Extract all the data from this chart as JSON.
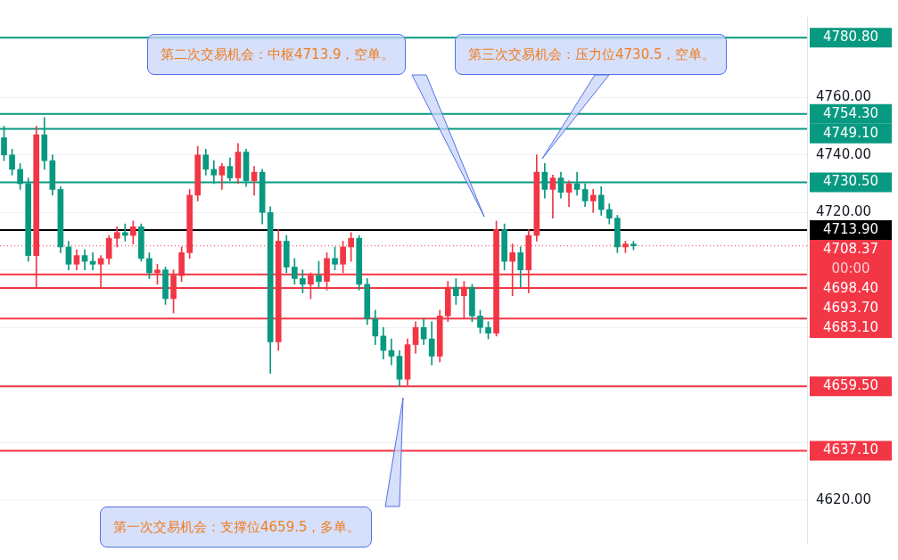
{
  "chart_data": {
    "type": "candlestick",
    "categories": [
      null,
      null,
      null,
      null,
      null,
      null,
      null,
      null,
      null,
      null,
      null,
      null,
      null,
      null,
      null,
      null,
      null,
      null,
      null,
      null,
      null,
      null,
      null,
      null,
      null,
      null,
      null,
      null,
      null,
      null,
      null,
      null,
      null,
      null,
      null,
      null,
      null,
      null,
      null,
      null,
      null,
      null,
      null,
      null,
      null,
      null,
      null,
      null,
      null,
      null,
      null,
      null,
      null,
      null,
      null,
      null,
      null,
      null,
      null,
      null,
      null,
      null,
      null,
      null,
      null,
      null,
      null,
      null,
      null,
      null,
      null,
      null,
      null,
      null,
      null,
      null,
      null,
      null,
      null,
      null,
      null,
      null,
      null,
      null,
      null,
      null,
      null,
      null,
      null,
      null,
      null,
      null,
      null,
      null,
      null,
      null,
      null,
      null,
      null,
      null
    ],
    "ohlc": [
      [
        4746,
        4750,
        4738,
        4740
      ],
      [
        4740,
        4742,
        4733,
        4735
      ],
      [
        4735,
        4737,
        4728,
        4730
      ],
      [
        4730,
        4732,
        4703,
        4705
      ],
      [
        4705,
        4750,
        4694,
        4747
      ],
      [
        4747,
        4753,
        4735,
        4738
      ],
      [
        4738,
        4740,
        4726,
        4728
      ],
      [
        4728,
        4729,
        4706,
        4708
      ],
      [
        4708,
        4710,
        4700,
        4702
      ],
      [
        4702,
        4707,
        4700,
        4705
      ],
      [
        4705,
        4707,
        4700,
        4703
      ],
      [
        4703,
        4706,
        4700,
        4702
      ],
      [
        4702,
        4705,
        4694,
        4704
      ],
      [
        4704,
        4712,
        4702,
        4711
      ],
      [
        4711,
        4715,
        4708,
        4713
      ],
      [
        4713,
        4716,
        4710,
        4712
      ],
      [
        4712,
        4717,
        4709,
        4715
      ],
      [
        4715,
        4716,
        4703,
        4704
      ],
      [
        4704,
        4706,
        4697,
        4699
      ],
      [
        4699,
        4702,
        4695,
        4700
      ],
      [
        4700,
        4701,
        4688,
        4690
      ],
      [
        4690,
        4700,
        4685,
        4698
      ],
      [
        4698,
        4708,
        4696,
        4706
      ],
      [
        4706,
        4728,
        4704,
        4726
      ],
      [
        4726,
        4743,
        4724,
        4740
      ],
      [
        4740,
        4742,
        4733,
        4735
      ],
      [
        4735,
        4738,
        4730,
        4733
      ],
      [
        4733,
        4737,
        4728,
        4736
      ],
      [
        4736,
        4739,
        4731,
        4732
      ],
      [
        4732,
        4744,
        4730,
        4741
      ],
      [
        4741,
        4742,
        4729,
        4731
      ],
      [
        4731,
        4736,
        4726,
        4734
      ],
      [
        4734,
        4735,
        4716,
        4720
      ],
      [
        4720,
        4722,
        4664,
        4675
      ],
      [
        4675,
        4714,
        4672,
        4710
      ],
      [
        4710,
        4712,
        4699,
        4701
      ],
      [
        4701,
        4704,
        4695,
        4697
      ],
      [
        4697,
        4700,
        4692,
        4695
      ],
      [
        4695,
        4699,
        4690,
        4698
      ],
      [
        4698,
        4703,
        4694,
        4696
      ],
      [
        4696,
        4706,
        4693,
        4704
      ],
      [
        4704,
        4708,
        4700,
        4702
      ],
      [
        4702,
        4710,
        4699,
        4708
      ],
      [
        4708,
        4713,
        4703,
        4711
      ],
      [
        4711,
        4712,
        4693,
        4695
      ],
      [
        4695,
        4697,
        4681,
        4683
      ],
      [
        4683,
        4686,
        4674,
        4677
      ],
      [
        4677,
        4680,
        4669,
        4672
      ],
      [
        4672,
        4676,
        4667,
        4670
      ],
      [
        4670,
        4672,
        4659.5,
        4662
      ],
      [
        4662,
        4676,
        4660,
        4674
      ],
      [
        4674,
        4682,
        4671,
        4680
      ],
      [
        4680,
        4683,
        4674,
        4676
      ],
      [
        4676,
        4682,
        4667,
        4670
      ],
      [
        4670,
        4686,
        4668,
        4684
      ],
      [
        4684,
        4696,
        4682,
        4694
      ],
      [
        4694,
        4697,
        4688,
        4691
      ],
      [
        4691,
        4696,
        4683,
        4694
      ],
      [
        4694,
        4695,
        4682,
        4684
      ],
      [
        4684,
        4686,
        4678,
        4680
      ],
      [
        4680,
        4682,
        4676,
        4678
      ],
      [
        4678,
        4717,
        4677,
        4714
      ],
      [
        4714,
        4716,
        4700,
        4703
      ],
      [
        4703,
        4709,
        4691,
        4706
      ],
      [
        4706,
        4708,
        4694,
        4700
      ],
      [
        4700,
        4714,
        4692,
        4712
      ],
      [
        4712,
        4740,
        4710,
        4734
      ],
      [
        4734,
        4737,
        4725,
        4728
      ],
      [
        4728,
        4733,
        4718,
        4732
      ],
      [
        4732,
        4734,
        4725,
        4727
      ],
      [
        4727,
        4731,
        4722,
        4730
      ],
      [
        4730,
        4734,
        4726,
        4728
      ],
      [
        4728,
        4730,
        4722,
        4724
      ],
      [
        4724,
        4728,
        4720,
        4726
      ],
      [
        4726,
        4729,
        4719,
        4721
      ],
      [
        4721,
        4723,
        4716,
        4718
      ],
      [
        4718,
        4719,
        4706,
        4708
      ],
      [
        4708,
        4710,
        4706,
        4709
      ],
      [
        4709,
        4710,
        4707,
        4708.37
      ],
      null,
      null,
      null,
      null,
      null,
      null,
      null,
      null,
      null,
      null,
      null,
      null,
      null,
      null,
      null,
      null,
      null,
      null,
      null,
      null,
      null
    ],
    "ylim": [
      4605,
      4788
    ],
    "yticks": [
      {
        "value": 4620,
        "label": "4620.00"
      },
      {
        "value": 4640,
        "label": null
      },
      {
        "value": 4660,
        "label": null
      },
      {
        "value": 4680,
        "label": null
      },
      {
        "value": 4700,
        "label": null
      },
      {
        "value": 4720,
        "label": "4720.00"
      },
      {
        "value": 4740,
        "label": "4740.00"
      },
      {
        "value": 4760,
        "label": "4760.00"
      }
    ],
    "grid": "y",
    "tick_labels": "y",
    "ref_lines": [
      {
        "axis": "y",
        "value": 4780.8,
        "label": "4780.80",
        "color": "#089981"
      },
      {
        "axis": "y",
        "value": 4754.3,
        "label": "4754.30",
        "color": "#089981"
      },
      {
        "axis": "y",
        "value": 4749.1,
        "label": "4749.10",
        "color": "#089981"
      },
      {
        "axis": "y",
        "value": 4730.5,
        "label": "4730.50",
        "color": "#089981"
      },
      {
        "axis": "y",
        "value": 4713.9,
        "label": "4713.90",
        "color": "#000000"
      },
      {
        "axis": "y",
        "value": 4708.37,
        "label": "4708.37\n00:00",
        "color": "#f23645",
        "line_style": "dotted"
      },
      {
        "axis": "y",
        "value": 4698.4,
        "label": "4698.40",
        "color": "#f23645"
      },
      {
        "axis": "y",
        "value": 4693.7,
        "label": "4693.70",
        "color": "#f23645"
      },
      {
        "axis": "y",
        "value": 4683.1,
        "label": "4683.10",
        "color": "#f23645"
      },
      {
        "axis": "y",
        "value": 4659.5,
        "label": "4659.50",
        "color": "#f23645"
      },
      {
        "axis": "y",
        "value": 4637.1,
        "label": "4637.10",
        "color": "#f23645"
      }
    ],
    "annotations": [
      "第一次交易机会：支撑位4659.5，多单。",
      "第二次交易机会：中枢4713.9，空单。",
      "第三次交易机会：压力位4730.5，空单。"
    ]
  }
}
